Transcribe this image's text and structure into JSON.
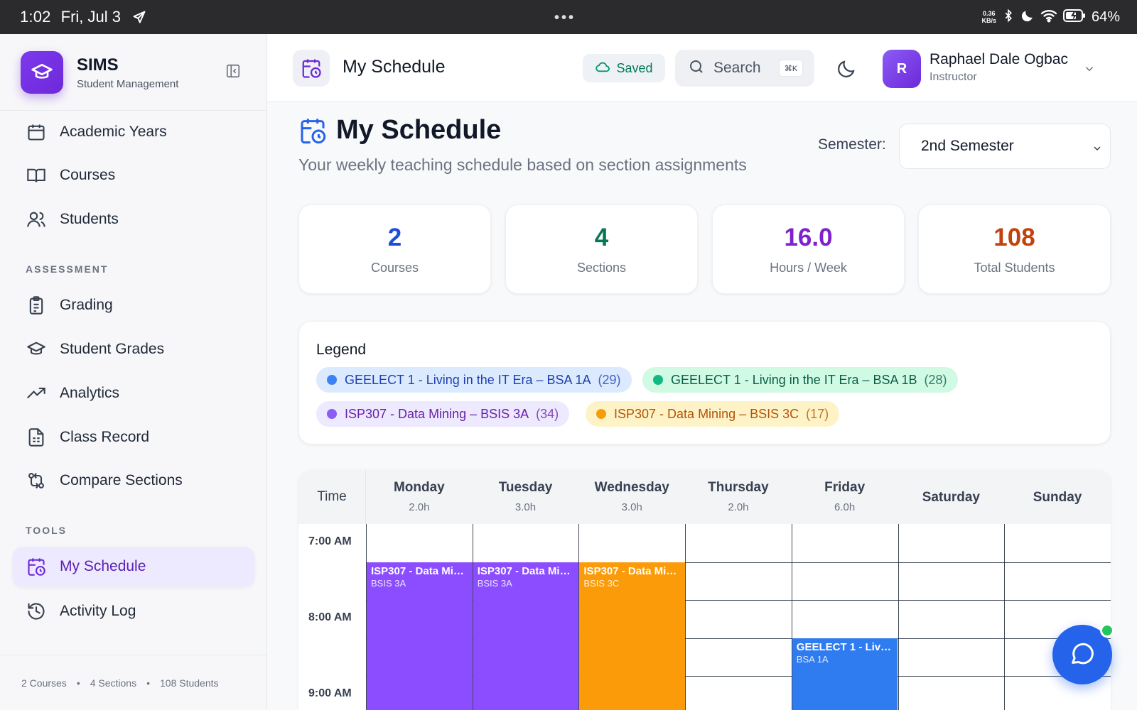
{
  "status_bar": {
    "time": "1:02",
    "date": "Fri, Jul 3",
    "net_rate_value": "0.36",
    "net_rate_unit": "KB/s",
    "battery": "64%"
  },
  "sidebar": {
    "brand_name": "SIMS",
    "brand_sub": "Student Management",
    "items_top": [
      {
        "label": "Academic Years",
        "icon": "calendar-icon"
      },
      {
        "label": "Courses",
        "icon": "book-icon"
      },
      {
        "label": "Students",
        "icon": "users-icon"
      }
    ],
    "section_assessment": "ASSESSMENT",
    "items_assessment": [
      {
        "label": "Grading",
        "icon": "clipboard-icon"
      },
      {
        "label": "Student Grades",
        "icon": "graduation-cap-icon"
      },
      {
        "label": "Analytics",
        "icon": "trend-icon"
      },
      {
        "label": "Class Record",
        "icon": "document-icon"
      },
      {
        "label": "Compare Sections",
        "icon": "compare-icon"
      }
    ],
    "section_tools": "TOOLS",
    "items_tools": [
      {
        "label": "My Schedule",
        "icon": "calendar-clock-icon",
        "active": true
      },
      {
        "label": "Activity Log",
        "icon": "history-icon"
      }
    ],
    "footer": {
      "courses": "2 Courses",
      "sections": "4 Sections",
      "students": "108 Students"
    }
  },
  "header": {
    "title": "My Schedule",
    "saved_label": "Saved",
    "search_label": "Search",
    "search_shortcut": "⌘K",
    "user_initial": "R",
    "user_name": "Raphael Dale Ogbac",
    "user_role": "Instructor"
  },
  "page": {
    "title": "My Schedule",
    "subtitle": "Your weekly teaching schedule based on section assignments",
    "semester_label": "Semester:",
    "semester_value": "2nd Semester"
  },
  "stats": [
    {
      "value": "2",
      "label": "Courses",
      "color": "#1d4ed8"
    },
    {
      "value": "4",
      "label": "Sections",
      "color": "#047857"
    },
    {
      "value": "16.0",
      "label": "Hours / Week",
      "color": "#7e22ce"
    },
    {
      "value": "108",
      "label": "Total Students",
      "color": "#c2410c"
    }
  ],
  "legend": {
    "title": "Legend",
    "items": [
      {
        "name": "GEELECT 1 - Living in the IT Era – BSA 1A",
        "count": "(29)",
        "dot": "#3b82f6",
        "bg": "#dbeafe",
        "fg": "#1e40af"
      },
      {
        "name": "GEELECT 1 - Living in the IT Era – BSA 1B",
        "count": "(28)",
        "dot": "#10b981",
        "bg": "#d1fae5",
        "fg": "#065f46"
      },
      {
        "name": "ISP307 - Data Mining – BSIS 3A",
        "count": "(34)",
        "dot": "#8b5cf6",
        "bg": "#ede9fe",
        "fg": "#6b21a8"
      },
      {
        "name": "ISP307 - Data Mining – BSIS 3C",
        "count": "(17)",
        "dot": "#f59e0b",
        "bg": "#fef3c7",
        "fg": "#b45309"
      }
    ]
  },
  "calendar": {
    "time_header": "Time",
    "days": [
      {
        "name": "Monday",
        "hours": "2.0h"
      },
      {
        "name": "Tuesday",
        "hours": "3.0h"
      },
      {
        "name": "Wednesday",
        "hours": "3.0h"
      },
      {
        "name": "Thursday",
        "hours": "2.0h"
      },
      {
        "name": "Friday",
        "hours": "6.0h"
      },
      {
        "name": "Saturday",
        "hours": ""
      },
      {
        "name": "Sunday",
        "hours": ""
      }
    ],
    "time_slots": [
      "7:00 AM",
      "8:00 AM",
      "9:00 AM"
    ],
    "events": [
      {
        "title": "ISP307 - Data Mi…",
        "section": "BSIS 3A",
        "day": 0,
        "start": "7:30",
        "color": "#8b4dff"
      },
      {
        "title": "ISP307 - Data Mi…",
        "section": "BSIS 3A",
        "day": 1,
        "start": "7:30",
        "color": "#8b4dff"
      },
      {
        "title": "ISP307 - Data Mi…",
        "section": "BSIS 3C",
        "day": 2,
        "start": "7:30",
        "color": "#fb9b0a"
      },
      {
        "title": "GEELECT 1 - Livi…",
        "section": "BSA 1A",
        "day": 4,
        "start": "8:30",
        "color": "#2f7bf0"
      }
    ]
  }
}
